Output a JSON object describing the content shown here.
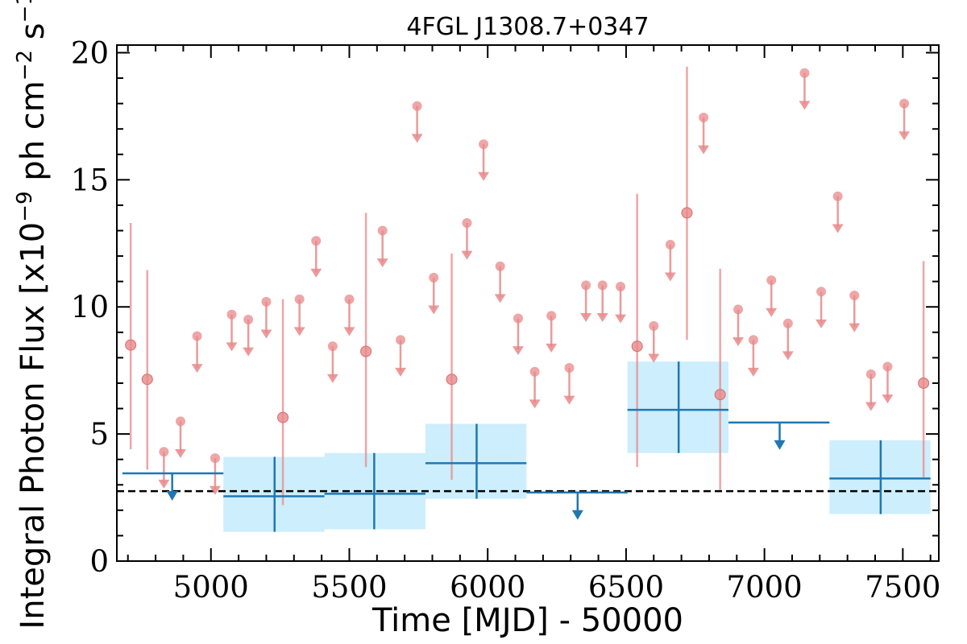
{
  "chart_data": {
    "type": "scatter",
    "title": "4FGL J1308.7+0347",
    "xlabel": "Time [MJD] - 50000",
    "ylabel": "Integral Photon Flux [x10^-9 ph cm^-2 s^-1]",
    "ylabel_parts": {
      "pre": "Integral Photon Flux [x10",
      "exp1": "−9",
      "mid": " ph cm",
      "exp2": "−2",
      "mid2": " s",
      "exp3": "−1",
      "post": "]"
    },
    "xlim": [
      4660,
      7630
    ],
    "ylim": [
      0,
      20.3
    ],
    "x_ticks": [
      5000,
      5500,
      6000,
      6500,
      7000,
      7500
    ],
    "y_ticks": [
      0,
      5,
      10,
      15,
      20
    ],
    "grid": false,
    "baseline": 2.75,
    "colors": {
      "short_bins": "#e8888a",
      "long_bins": "#1f77b4",
      "band_fill": "#cdeefc",
      "baseline": "#000000"
    },
    "short_bin_detections": [
      {
        "x": 4710,
        "y": 8.5,
        "ylo": 4.4,
        "yhi": 13.3
      },
      {
        "x": 4770,
        "y": 7.15,
        "ylo": 3.6,
        "yhi": 11.45
      },
      {
        "x": 5260,
        "y": 5.65,
        "ylo": 2.2,
        "yhi": 10.3
      },
      {
        "x": 5560,
        "y": 8.25,
        "ylo": 3.7,
        "yhi": 13.7
      },
      {
        "x": 5870,
        "y": 7.15,
        "ylo": 3.2,
        "yhi": 12.1
      },
      {
        "x": 6540,
        "y": 8.45,
        "ylo": 3.7,
        "yhi": 14.45
      },
      {
        "x": 6720,
        "y": 13.7,
        "ylo": 8.7,
        "yhi": 19.45
      },
      {
        "x": 6840,
        "y": 6.55,
        "ylo": 2.8,
        "yhi": 11.5
      },
      {
        "x": 7575,
        "y": 7.0,
        "ylo": 3.3,
        "yhi": 11.8
      }
    ],
    "short_bin_upper_limits": [
      {
        "x": 4830,
        "y": 4.3
      },
      {
        "x": 4890,
        "y": 5.5
      },
      {
        "x": 4950,
        "y": 8.85
      },
      {
        "x": 5015,
        "y": 4.05
      },
      {
        "x": 5075,
        "y": 9.7
      },
      {
        "x": 5135,
        "y": 9.5
      },
      {
        "x": 5200,
        "y": 10.2
      },
      {
        "x": 5320,
        "y": 10.3
      },
      {
        "x": 5380,
        "y": 12.6
      },
      {
        "x": 5440,
        "y": 8.45
      },
      {
        "x": 5500,
        "y": 10.3
      },
      {
        "x": 5620,
        "y": 13.0
      },
      {
        "x": 5685,
        "y": 8.7
      },
      {
        "x": 5745,
        "y": 17.9
      },
      {
        "x": 5805,
        "y": 11.15
      },
      {
        "x": 5925,
        "y": 13.3
      },
      {
        "x": 5985,
        "y": 16.4
      },
      {
        "x": 6045,
        "y": 11.6
      },
      {
        "x": 6110,
        "y": 9.55
      },
      {
        "x": 6170,
        "y": 7.45
      },
      {
        "x": 6230,
        "y": 9.65
      },
      {
        "x": 6295,
        "y": 7.6
      },
      {
        "x": 6355,
        "y": 10.85
      },
      {
        "x": 6415,
        "y": 10.85
      },
      {
        "x": 6480,
        "y": 10.8
      },
      {
        "x": 6600,
        "y": 9.25
      },
      {
        "x": 6660,
        "y": 12.45
      },
      {
        "x": 6780,
        "y": 17.45
      },
      {
        "x": 6905,
        "y": 9.9
      },
      {
        "x": 6960,
        "y": 8.7
      },
      {
        "x": 7025,
        "y": 11.05
      },
      {
        "x": 7085,
        "y": 9.35
      },
      {
        "x": 7145,
        "y": 19.2
      },
      {
        "x": 7205,
        "y": 10.6
      },
      {
        "x": 7265,
        "y": 14.35
      },
      {
        "x": 7325,
        "y": 10.45
      },
      {
        "x": 7385,
        "y": 7.35
      },
      {
        "x": 7445,
        "y": 7.65
      },
      {
        "x": 7505,
        "y": 18.0
      }
    ],
    "long_bin_detections": [
      {
        "x": 5230,
        "y": 2.55,
        "x0": 5045,
        "x1": 5410,
        "ylo": 1.15,
        "yhi": 4.1
      },
      {
        "x": 5590,
        "y": 2.65,
        "x0": 5410,
        "x1": 5775,
        "ylo": 1.25,
        "yhi": 4.25
      },
      {
        "x": 5960,
        "y": 3.85,
        "x0": 5775,
        "x1": 6140,
        "ylo": 2.45,
        "yhi": 5.4
      },
      {
        "x": 6690,
        "y": 5.95,
        "x0": 6505,
        "x1": 6870,
        "ylo": 4.25,
        "yhi": 7.85
      },
      {
        "x": 7420,
        "y": 3.25,
        "x0": 7235,
        "x1": 7600,
        "ylo": 1.85,
        "yhi": 4.75
      }
    ],
    "long_bin_upper_limits": [
      {
        "x": 4860,
        "y": 3.45,
        "x0": 4680,
        "x1": 5045
      },
      {
        "x": 6325,
        "y": 2.7,
        "x0": 6140,
        "x1": 6505
      },
      {
        "x": 7055,
        "y": 5.45,
        "x0": 6870,
        "x1": 7235
      }
    ]
  }
}
